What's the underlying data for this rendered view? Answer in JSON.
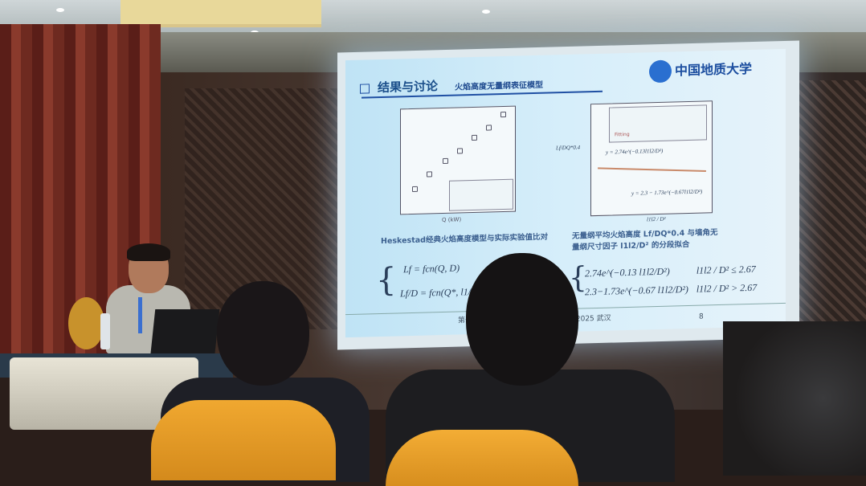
{
  "slide": {
    "title": "结果与讨论",
    "subtitle": "火焰高度无量纲表征模型",
    "logo_text": "中国地质大学",
    "left_caption": "Heskestad经典火焰高度模型与实际实验值比对",
    "right_caption_line1": "无量纲平均火焰高度 Lf/DQ*0.4 与墙角无",
    "right_caption_line2": "量纲尺寸因子 l1l2/D² 的分段拟合",
    "eq_left_1": "Lf = fcn(Q, D)",
    "eq_left_2": "Lf/D = fcn(Q*, l1/D, l2/D",
    "eq_right_case1": "2.74e^(−0.13 l1l2/D²)",
    "eq_right_cond1": "l1l2 / D² ≤ 2.67",
    "eq_right_case2": "2.3−1.73e^(−0.67 l1l2/D²)",
    "eq_right_cond2": "l1l2 / D² > 2.67",
    "right_plot_fit1": "y = 2.74e^(−0.13l1l2/D²)",
    "right_plot_fit2": "y = 2.3 − 1.73e^(−0.67l1l2/D²)",
    "right_plot_ylabel": "Lf/DQ*0.4",
    "right_plot_xlabel": "l1l2 / D²",
    "left_plot_xlabel": "Q (kW)",
    "legend_fitting": "Fitting",
    "footer_left": "第十",
    "footer_right": "会 2025 武汉",
    "page_number": "8"
  }
}
